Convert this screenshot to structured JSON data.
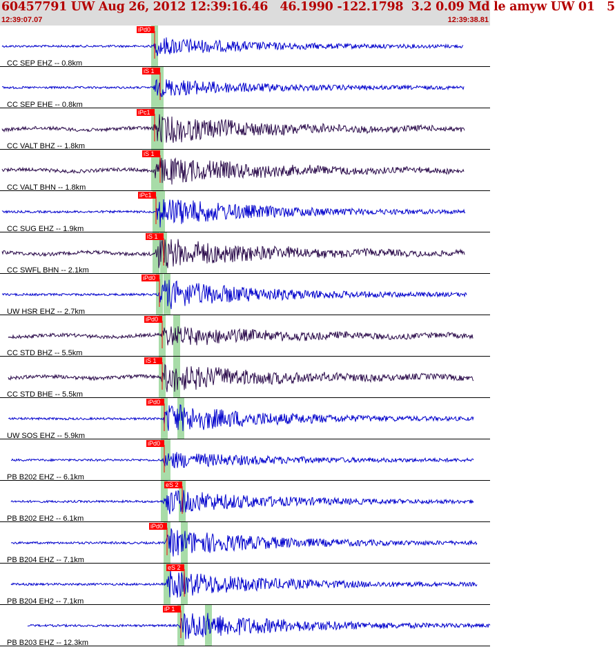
{
  "header": {
    "title": "60457791 UW Aug 26, 2012 12:39:16.46   46.1990 -122.1798  3.2 0.09 Md le amyw UW 01   5",
    "time_start": "12:39:07.07",
    "time_end": "12:39:38.81"
  },
  "colors": {
    "header_bg": "#dcdcdc",
    "header_text": "#b40000",
    "trace_blue": "#0000cc",
    "trace_dark": "#2a0a4a",
    "pick_red": "#ff0000",
    "window_green": "#a8dca8"
  },
  "chart_data": {
    "type": "seismogram",
    "x_range": [
      "12:39:07.07",
      "12:39:38.81"
    ],
    "traces": [
      {
        "label": "CC SEP EHZ -- 0.8km",
        "pick": "iPd0",
        "color": "blue"
      },
      {
        "label": "CC SEP EHE -- 0.8km",
        "pick": "iS 1",
        "color": "blue"
      },
      {
        "label": "CC VALT BHZ -- 1.8km",
        "pick": "iPc1",
        "color": "dark"
      },
      {
        "label": "CC VALT BHN -- 1.8km",
        "pick": "iS 1",
        "color": "dark"
      },
      {
        "label": "CC SUG EHZ -- 1.9km",
        "pick": "iPc1",
        "color": "blue"
      },
      {
        "label": "CC SWFL BHN -- 2.1km",
        "pick": "iS 1",
        "color": "dark"
      },
      {
        "label": "UW HSR EHZ -- 2.7km",
        "pick": "iPd0",
        "color": "blue"
      },
      {
        "label": "CC STD BHZ -- 5.5km",
        "pick": "iPd0",
        "color": "dark"
      },
      {
        "label": "CC STD BHE -- 5.5km",
        "pick": "iS 1",
        "color": "dark"
      },
      {
        "label": "UW SOS EHZ -- 5.9km",
        "pick": "iPd0",
        "color": "blue"
      },
      {
        "label": "PB B202 EHZ -- 6.1km",
        "pick": "iPd0",
        "color": "blue"
      },
      {
        "label": "PB B202 EH2 -- 6.1km",
        "pick": "eS 2",
        "color": "blue"
      },
      {
        "label": "PB B204 EHZ -- 7.1km",
        "pick": "iPd0",
        "color": "blue"
      },
      {
        "label": "PB B204 EH2 -- 7.1km",
        "pick": "eS 2",
        "color": "blue"
      },
      {
        "label": "PB B203 EHZ -- 12.3km",
        "pick": "iP 1",
        "color": "blue"
      }
    ]
  }
}
